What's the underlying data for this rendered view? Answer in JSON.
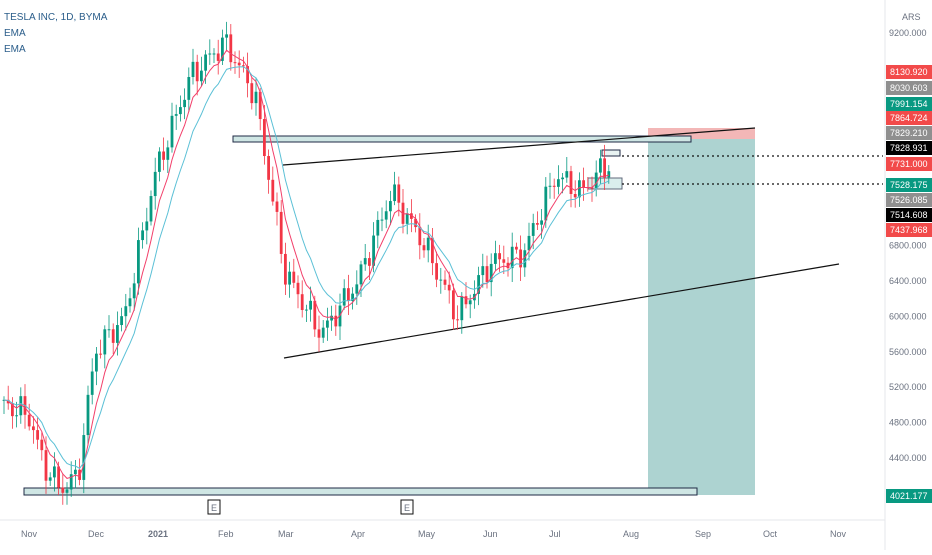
{
  "header": {
    "symbol": "TESLA INC, 1D, BYMA",
    "indicators": [
      "EMA",
      "EMA"
    ]
  },
  "price_axis": {
    "currency": "ARS",
    "ticks": [
      "9200.000",
      "6800.000",
      "6400.000",
      "6000.000",
      "5600.000",
      "5200.000",
      "4800.000",
      "4400.000"
    ],
    "badges": [
      {
        "text": "8130.920",
        "color": "#f24a4a"
      },
      {
        "text": "8030.603",
        "color": "#8f8f8f"
      },
      {
        "text": "7991.154",
        "color": "#089981"
      },
      {
        "text": "7864.724",
        "color": "#f24a4a"
      },
      {
        "text": "7829.210",
        "color": "#8f8f8f"
      },
      {
        "text": "7828.931",
        "color": "#000000"
      },
      {
        "text": "7731.000",
        "color": "#f24a4a"
      },
      {
        "text": "7528.175",
        "color": "#089981"
      },
      {
        "text": "7526.085",
        "color": "#8f8f8f"
      },
      {
        "text": "7514.608",
        "color": "#000000"
      },
      {
        "text": "7437.968",
        "color": "#f24a4a"
      },
      {
        "text": "4021.177",
        "color": "#089981"
      }
    ]
  },
  "time_axis": {
    "labels": [
      "Nov",
      "Dec",
      "2021",
      "Feb",
      "Mar",
      "Apr",
      "May",
      "Jun",
      "Jul",
      "Aug",
      "Sep",
      "Oct",
      "Nov"
    ],
    "event_markers": [
      "E",
      "E"
    ]
  },
  "chart_data": {
    "type": "candlestick",
    "x": [
      "Nov",
      "Dec",
      "2021",
      "Feb",
      "Mar",
      "Apr",
      "May",
      "Jun",
      "Jul",
      "Aug",
      "Sep",
      "Oct",
      "Nov"
    ],
    "close_path": [
      [
        "Nov",
        4900
      ],
      [
        "Nov",
        4300
      ],
      [
        "Nov",
        4050
      ],
      [
        "Nov",
        4200
      ],
      [
        "Dec",
        5600
      ],
      [
        "Dec",
        6000
      ],
      [
        "2021",
        7600
      ],
      [
        "2021",
        8700
      ],
      [
        "Feb",
        9100
      ],
      [
        "Feb",
        8500
      ],
      [
        "Mar",
        6500
      ],
      [
        "Mar",
        5800
      ],
      [
        "Apr",
        6400
      ],
      [
        "Apr",
        7400
      ],
      [
        "May",
        6800
      ],
      [
        "May",
        6000
      ],
      [
        "Jun",
        6600
      ],
      [
        "Jun",
        6700
      ],
      [
        "Jul",
        7600
      ],
      [
        "Jul",
        7400
      ],
      [
        "Jul",
        7700
      ]
    ],
    "colors": {
      "up": "#089981",
      "down": "#f23645",
      "ema_fast": "#f23f6a",
      "ema_slow": "#5bc0d6",
      "target_zone": "#a9d1cf",
      "stop_zone": "#f2b3b3"
    }
  }
}
